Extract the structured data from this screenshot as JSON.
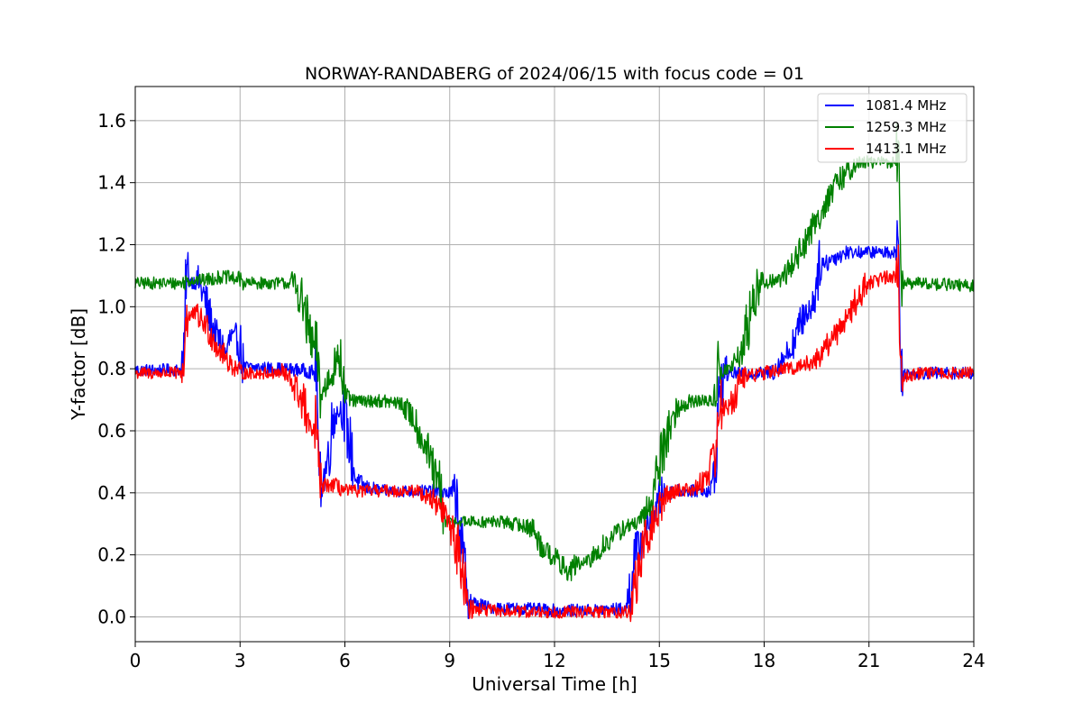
{
  "chart_data": {
    "type": "line",
    "title": "NORWAY-RANDABERG of 2024/06/15 with focus code = 01",
    "xlabel": "Universal Time [h]",
    "ylabel": "Y-factor [dB]",
    "xlim": [
      0,
      24
    ],
    "ylim": [
      -0.08,
      1.71
    ],
    "xticks": [
      0,
      3,
      6,
      9,
      12,
      15,
      18,
      21,
      24
    ],
    "yticks": [
      0.0,
      0.2,
      0.4,
      0.6,
      0.8,
      1.0,
      1.2,
      1.4,
      1.6
    ],
    "ytick_labels": [
      "0.0",
      "0.2",
      "0.4",
      "0.6",
      "0.8",
      "1.0",
      "1.2",
      "1.4",
      "1.6"
    ],
    "grid": true,
    "legend_position": "upper-right",
    "series": [
      {
        "name": "1081.4 MHz",
        "color": "#0000ff",
        "noise": 0.02,
        "points": [
          [
            0,
            0.79
          ],
          [
            1.4,
            0.79
          ],
          [
            1.45,
            1.08
          ],
          [
            1.8,
            1.07
          ],
          [
            2.2,
            0.92
          ],
          [
            2.6,
            0.84
          ],
          [
            2.8,
            0.9
          ],
          [
            3.0,
            0.86
          ],
          [
            3.05,
            0.8
          ],
          [
            4.7,
            0.79
          ],
          [
            5.2,
            0.78
          ],
          [
            5.25,
            0.4
          ],
          [
            5.4,
            0.43
          ],
          [
            5.5,
            0.47
          ],
          [
            5.7,
            0.64
          ],
          [
            5.9,
            0.66
          ],
          [
            6.1,
            0.55
          ],
          [
            6.3,
            0.43
          ],
          [
            6.6,
            0.41
          ],
          [
            7.0,
            0.4
          ],
          [
            8.4,
            0.4
          ],
          [
            9.1,
            0.39
          ],
          [
            9.2,
            0.35
          ],
          [
            9.35,
            0.18
          ],
          [
            9.55,
            0.04
          ],
          [
            10.0,
            0.025
          ],
          [
            11.0,
            0.02
          ],
          [
            12.0,
            0.015
          ],
          [
            13.0,
            0.015
          ],
          [
            14.1,
            0.02
          ],
          [
            14.3,
            0.17
          ],
          [
            14.6,
            0.26
          ],
          [
            14.9,
            0.32
          ],
          [
            15.1,
            0.39
          ],
          [
            15.5,
            0.4
          ],
          [
            16.5,
            0.4
          ],
          [
            16.6,
            0.43
          ],
          [
            16.7,
            0.68
          ],
          [
            16.9,
            0.78
          ],
          [
            17.2,
            0.78
          ],
          [
            17.5,
            0.78
          ],
          [
            18.0,
            0.78
          ],
          [
            18.2,
            0.78
          ],
          [
            18.4,
            0.8
          ],
          [
            18.8,
            0.86
          ],
          [
            19.2,
            0.97
          ],
          [
            19.4,
            0.99
          ],
          [
            19.6,
            1.12
          ],
          [
            20.0,
            1.15
          ],
          [
            20.4,
            1.17
          ],
          [
            21.0,
            1.17
          ],
          [
            21.85,
            1.17
          ],
          [
            21.9,
            0.78
          ],
          [
            22.5,
            0.78
          ],
          [
            24.0,
            0.78
          ]
        ]
      },
      {
        "name": "1259.3 MHz",
        "color": "#008000",
        "noise": 0.02,
        "points": [
          [
            0,
            1.07
          ],
          [
            1.4,
            1.07
          ],
          [
            1.5,
            1.08
          ],
          [
            2.0,
            1.08
          ],
          [
            2.5,
            1.09
          ],
          [
            3.0,
            1.08
          ],
          [
            3.1,
            1.07
          ],
          [
            4.5,
            1.07
          ],
          [
            4.7,
            1.02
          ],
          [
            4.8,
            0.98
          ],
          [
            5.0,
            0.88
          ],
          [
            5.2,
            0.82
          ],
          [
            5.3,
            0.69
          ],
          [
            5.5,
            0.74
          ],
          [
            5.8,
            0.83
          ],
          [
            6.0,
            0.7
          ],
          [
            6.2,
            0.69
          ],
          [
            7.0,
            0.69
          ],
          [
            7.6,
            0.68
          ],
          [
            8.0,
            0.62
          ],
          [
            8.4,
            0.5
          ],
          [
            8.6,
            0.42
          ],
          [
            8.7,
            0.4
          ],
          [
            8.8,
            0.3
          ],
          [
            9.5,
            0.3
          ],
          [
            10.5,
            0.3
          ],
          [
            11.0,
            0.29
          ],
          [
            11.3,
            0.28
          ],
          [
            11.6,
            0.22
          ],
          [
            12.0,
            0.18
          ],
          [
            12.4,
            0.13
          ],
          [
            12.6,
            0.16
          ],
          [
            13.0,
            0.17
          ],
          [
            13.5,
            0.23
          ],
          [
            14.0,
            0.28
          ],
          [
            14.5,
            0.3
          ],
          [
            14.8,
            0.36
          ],
          [
            15.0,
            0.47
          ],
          [
            15.3,
            0.6
          ],
          [
            15.6,
            0.67
          ],
          [
            16.0,
            0.69
          ],
          [
            16.6,
            0.69
          ],
          [
            16.7,
            0.78
          ],
          [
            17.0,
            0.79
          ],
          [
            17.4,
            0.84
          ],
          [
            17.6,
            0.95
          ],
          [
            17.9,
            1.07
          ],
          [
            18.5,
            1.08
          ],
          [
            18.9,
            1.14
          ],
          [
            19.3,
            1.22
          ],
          [
            19.8,
            1.33
          ],
          [
            20.2,
            1.4
          ],
          [
            20.6,
            1.45
          ],
          [
            21.0,
            1.46
          ],
          [
            21.5,
            1.46
          ],
          [
            21.85,
            1.46
          ],
          [
            21.9,
            1.07
          ],
          [
            22.5,
            1.07
          ],
          [
            24.0,
            1.06
          ]
        ]
      },
      {
        "name": "1413.1 MHz",
        "color": "#ff0000",
        "noise": 0.02,
        "points": [
          [
            0,
            0.78
          ],
          [
            1.4,
            0.78
          ],
          [
            1.45,
            0.95
          ],
          [
            1.7,
            0.97
          ],
          [
            2.0,
            0.93
          ],
          [
            2.4,
            0.85
          ],
          [
            2.7,
            0.81
          ],
          [
            2.9,
            0.79
          ],
          [
            3.05,
            0.78
          ],
          [
            4.2,
            0.78
          ],
          [
            4.5,
            0.74
          ],
          [
            4.8,
            0.67
          ],
          [
            5.0,
            0.58
          ],
          [
            5.2,
            0.6
          ],
          [
            5.25,
            0.41
          ],
          [
            5.6,
            0.42
          ],
          [
            6.0,
            0.4
          ],
          [
            8.0,
            0.4
          ],
          [
            8.4,
            0.38
          ],
          [
            8.8,
            0.33
          ],
          [
            9.1,
            0.25
          ],
          [
            9.4,
            0.1
          ],
          [
            9.6,
            0.02
          ],
          [
            10.0,
            0.015
          ],
          [
            11.0,
            0.01
          ],
          [
            12.0,
            0.01
          ],
          [
            13.0,
            0.01
          ],
          [
            14.2,
            0.01
          ],
          [
            14.4,
            0.13
          ],
          [
            14.7,
            0.25
          ],
          [
            15.0,
            0.33
          ],
          [
            15.2,
            0.38
          ],
          [
            15.5,
            0.4
          ],
          [
            16.1,
            0.41
          ],
          [
            16.4,
            0.45
          ],
          [
            16.6,
            0.52
          ],
          [
            16.8,
            0.67
          ],
          [
            17.0,
            0.66
          ],
          [
            17.3,
            0.74
          ],
          [
            17.5,
            0.77
          ],
          [
            18.0,
            0.78
          ],
          [
            18.5,
            0.79
          ],
          [
            19.0,
            0.8
          ],
          [
            19.5,
            0.82
          ],
          [
            20.0,
            0.89
          ],
          [
            20.5,
            0.98
          ],
          [
            21.0,
            1.07
          ],
          [
            21.5,
            1.09
          ],
          [
            21.85,
            1.09
          ],
          [
            21.9,
            0.77
          ],
          [
            22.5,
            0.78
          ],
          [
            24.0,
            0.78
          ]
        ]
      }
    ]
  }
}
